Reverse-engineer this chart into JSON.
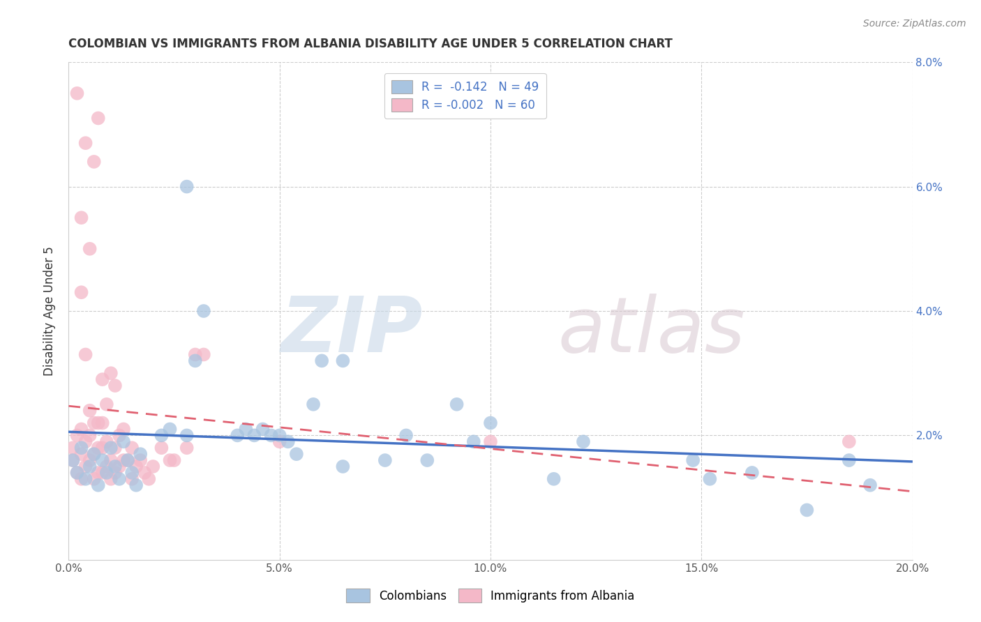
{
  "title": "COLOMBIAN VS IMMIGRANTS FROM ALBANIA DISABILITY AGE UNDER 5 CORRELATION CHART",
  "source": "Source: ZipAtlas.com",
  "ylabel": "Disability Age Under 5",
  "xlim": [
    0.0,
    0.2
  ],
  "ylim": [
    0.0,
    0.08
  ],
  "xticks": [
    0.0,
    0.05,
    0.1,
    0.15,
    0.2
  ],
  "yticks": [
    0.0,
    0.02,
    0.04,
    0.06,
    0.08
  ],
  "legend1_label": "R =  -0.142   N = 49",
  "legend2_label": "R = -0.002   N = 60",
  "blue_color": "#a8c4e0",
  "pink_color": "#f4b8c8",
  "blue_line_color": "#4472c4",
  "pink_line_color": "#e06070",
  "watermark_zip": "ZIP",
  "watermark_atlas": "atlas",
  "blue_r": -0.142,
  "pink_r": -0.002,
  "blue_x": [
    0.001,
    0.002,
    0.003,
    0.004,
    0.005,
    0.006,
    0.007,
    0.008,
    0.009,
    0.01,
    0.011,
    0.012,
    0.013,
    0.014,
    0.015,
    0.016,
    0.017,
    0.022,
    0.024,
    0.028,
    0.03,
    0.04,
    0.042,
    0.044,
    0.046,
    0.048,
    0.05,
    0.052,
    0.054,
    0.06,
    0.065,
    0.075,
    0.08,
    0.085,
    0.092,
    0.096,
    0.1,
    0.115,
    0.122,
    0.148,
    0.152,
    0.162,
    0.175,
    0.185,
    0.19,
    0.028,
    0.032,
    0.058,
    0.065
  ],
  "blue_y": [
    0.016,
    0.014,
    0.018,
    0.013,
    0.015,
    0.017,
    0.012,
    0.016,
    0.014,
    0.018,
    0.015,
    0.013,
    0.019,
    0.016,
    0.014,
    0.012,
    0.017,
    0.02,
    0.021,
    0.02,
    0.032,
    0.02,
    0.021,
    0.02,
    0.021,
    0.02,
    0.02,
    0.019,
    0.017,
    0.032,
    0.015,
    0.016,
    0.02,
    0.016,
    0.025,
    0.019,
    0.022,
    0.013,
    0.019,
    0.016,
    0.013,
    0.014,
    0.008,
    0.016,
    0.012,
    0.06,
    0.04,
    0.025,
    0.032
  ],
  "pink_x": [
    0.001,
    0.001,
    0.002,
    0.002,
    0.003,
    0.003,
    0.003,
    0.004,
    0.004,
    0.005,
    0.005,
    0.005,
    0.006,
    0.006,
    0.006,
    0.007,
    0.007,
    0.007,
    0.008,
    0.008,
    0.008,
    0.009,
    0.009,
    0.01,
    0.01,
    0.011,
    0.011,
    0.012,
    0.012,
    0.013,
    0.013,
    0.014,
    0.015,
    0.015,
    0.016,
    0.017,
    0.018,
    0.019,
    0.02,
    0.022,
    0.024,
    0.025,
    0.028,
    0.03,
    0.032,
    0.002,
    0.004,
    0.005,
    0.006,
    0.007,
    0.003,
    0.003,
    0.004,
    0.05,
    0.1,
    0.185,
    0.008,
    0.009,
    0.01,
    0.011
  ],
  "pink_y": [
    0.016,
    0.018,
    0.014,
    0.02,
    0.013,
    0.017,
    0.021,
    0.015,
    0.019,
    0.016,
    0.02,
    0.024,
    0.013,
    0.017,
    0.022,
    0.014,
    0.018,
    0.022,
    0.014,
    0.018,
    0.022,
    0.015,
    0.019,
    0.013,
    0.016,
    0.014,
    0.018,
    0.015,
    0.02,
    0.016,
    0.021,
    0.016,
    0.013,
    0.018,
    0.015,
    0.016,
    0.014,
    0.013,
    0.015,
    0.018,
    0.016,
    0.016,
    0.018,
    0.033,
    0.033,
    0.075,
    0.067,
    0.05,
    0.064,
    0.071,
    0.055,
    0.043,
    0.033,
    0.019,
    0.019,
    0.019,
    0.029,
    0.025,
    0.03,
    0.028
  ]
}
